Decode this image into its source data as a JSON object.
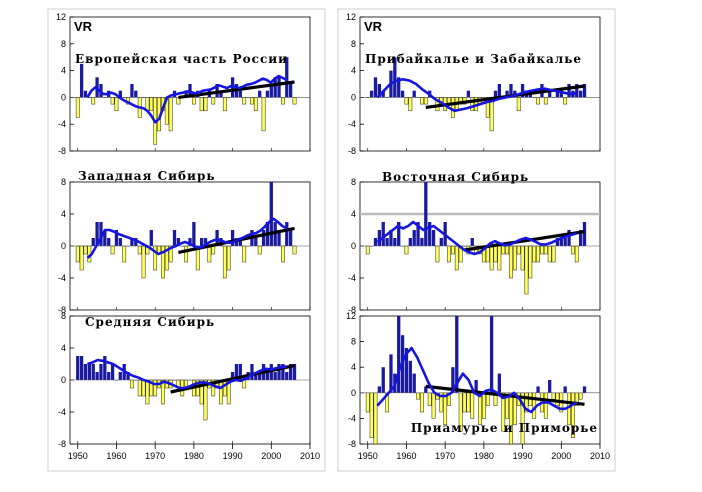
{
  "colors": {
    "positive_bar": "#1a1aa0",
    "negative_bar": "#ffff55",
    "negative_edge": "#222222",
    "moving_average": "#1515e0",
    "trend": "#000000",
    "reference_line": "#bbbbbb"
  },
  "chart_data": [
    {
      "type": "bar",
      "panel": "top-left",
      "corner_label": "VR",
      "title": "Европейская часть России",
      "ylim": [
        -8,
        12
      ],
      "yticks": [
        -8,
        -4,
        0,
        4,
        8,
        12
      ],
      "start_year": 1950,
      "end_year": 2006,
      "values": [
        -3,
        5,
        1,
        0,
        -1,
        3,
        2,
        0,
        1,
        -1,
        -2,
        1,
        0,
        -1,
        2,
        1,
        -3,
        0,
        -2,
        -2,
        -7,
        -5,
        -2,
        -4,
        -5,
        1,
        -1,
        0,
        1,
        2,
        -1,
        1,
        -2,
        -2,
        1,
        -1,
        2,
        1,
        -2,
        0,
        3,
        2,
        1,
        -1,
        0,
        -1,
        -2,
        1,
        -5,
        1,
        2,
        3,
        3,
        -1,
        6,
        2,
        -1
      ],
      "moving_average": [
        0,
        1,
        1.5,
        1,
        0.5,
        0.5,
        0.7,
        0.5,
        0,
        -0.4,
        -0.7,
        -1,
        -1.3,
        -1.5,
        -1.6,
        -2,
        -2.7,
        -3.7,
        -3.2,
        -1.5,
        0,
        0.3,
        0.4,
        0.6,
        0.7,
        0.9,
        0.8,
        0.6,
        0.7,
        1,
        1.1,
        1.2,
        1.5,
        1.8,
        1.6,
        1.4,
        1.7,
        1.6,
        1.4,
        1.6,
        1.9,
        2,
        2.2,
        2.5,
        2.8,
        2.6,
        2.2,
        2.8,
        3.2,
        2.9,
        2.6
      ],
      "trend": {
        "start_year": 1976,
        "end_year": 2006,
        "start": 0,
        "end": 2.3
      }
    },
    {
      "type": "bar",
      "panel": "middle-left",
      "title": "Западная Сибирь",
      "ylim": [
        -8,
        8
      ],
      "yticks": [
        -8,
        -4,
        0,
        4,
        8
      ],
      "start_year": 1950,
      "end_year": 2006,
      "values": [
        -2,
        -3,
        -1,
        -2,
        1,
        3,
        3,
        2,
        1,
        -1,
        2,
        1,
        -2,
        0,
        1,
        1,
        -1,
        -4,
        -1,
        2,
        -3,
        -1,
        -4,
        -3,
        -2,
        2,
        1,
        0,
        -2,
        1,
        3,
        -3,
        1,
        1,
        -2,
        -1,
        2,
        1,
        -4,
        -3,
        2,
        1,
        1,
        -2,
        0,
        2,
        1,
        -1,
        2,
        3,
        8,
        3,
        2,
        -2,
        3,
        2,
        -1
      ],
      "moving_average": [
        -1.5,
        -1,
        0,
        1,
        2,
        2,
        1.8,
        1.5,
        1.3,
        1.1,
        0.9,
        0.7,
        0.4,
        0.1,
        -0.2,
        -0.6,
        -1,
        -0.8,
        -0.5,
        -0.2,
        0,
        0.3,
        0.5,
        0.3,
        0,
        -0.2,
        -0.1,
        0.3,
        0.6,
        0.8,
        0.7,
        0.5,
        0.4,
        0.5,
        0.8,
        1,
        1.3,
        1.5,
        1.6,
        1.9,
        2.4,
        3,
        3.4,
        3,
        2.5,
        2.2
      ],
      "trend": {
        "start_year": 1976,
        "end_year": 2006,
        "start": -0.8,
        "end": 2.2
      }
    },
    {
      "type": "bar",
      "panel": "bottom-left",
      "title": "Средняя Сибирь",
      "ylim": [
        -8,
        8
      ],
      "yticks": [
        -8,
        -4,
        0,
        4,
        8
      ],
      "start_year": 1950,
      "end_year": 2006,
      "values": [
        3,
        3,
        2,
        2,
        2,
        1,
        2,
        3,
        1,
        2,
        0,
        1,
        2,
        1,
        -1,
        0,
        -2,
        -2,
        -3,
        -2,
        -2,
        -1,
        -3,
        -1,
        -1,
        0,
        -1,
        -2,
        -1,
        0,
        -2,
        -2,
        -3,
        -5,
        -1,
        -2,
        -1,
        -3,
        -2,
        -3,
        1,
        2,
        2,
        -1,
        1,
        2,
        1,
        1,
        2,
        1,
        2,
        1,
        2,
        2,
        1,
        2,
        2
      ],
      "moving_average": [
        2,
        2.2,
        2.5,
        2.4,
        2.2,
        2,
        1.6,
        1.2,
        0.8,
        0.5,
        0.3,
        0,
        -0.2,
        -0.5,
        -0.5,
        -0.2,
        -0.4,
        -0.7,
        -1,
        -1,
        -0.8,
        -0.5,
        -0.3,
        -0.3,
        -0.5,
        -0.8,
        -1,
        -0.6,
        -0.2,
        0,
        -0.1,
        0.2,
        0.6,
        0.9,
        1.2,
        1.4,
        1.3,
        1.5,
        1.6,
        1.7
      ],
      "trend": {
        "start_year": 1974,
        "end_year": 2006,
        "start": -1.5,
        "end": 1.8
      }
    },
    {
      "type": "bar",
      "panel": "top-right",
      "corner_label": "VR",
      "title": "Прибайкалье и Забайкалье",
      "ylim": [
        -8,
        12
      ],
      "yticks": [
        -8,
        -4,
        0,
        4,
        8,
        12
      ],
      "start_year": 1950,
      "end_year": 2006,
      "values": [
        0,
        1,
        3,
        2,
        1,
        0,
        4,
        6,
        3,
        1,
        -1,
        -2,
        1,
        0,
        -1,
        -1,
        1,
        0,
        -2,
        -1,
        -2,
        -1,
        -3,
        -2,
        -1,
        -1,
        1,
        -2,
        -2,
        -1,
        0,
        -3,
        -5,
        1,
        2,
        0,
        1,
        2,
        1,
        -2,
        2,
        1,
        1,
        0,
        -1,
        2,
        -1,
        1,
        0,
        1,
        1,
        -1,
        2,
        1,
        2,
        1,
        2
      ],
      "moving_average": [
        0,
        1,
        2,
        2.5,
        2.7,
        2.5,
        2,
        1.2,
        0.5,
        -0.3,
        -0.8,
        -1.5,
        -2,
        -1.8,
        -1.6,
        -1.3,
        -1,
        -0.7,
        -0.5,
        -0.2,
        0,
        0.2,
        0.5,
        0.8,
        1,
        1.2,
        1.3,
        1.1,
        0.9,
        0.7,
        0.5,
        0.6
      ],
      "trend": {
        "start_year": 1965,
        "end_year": 2006,
        "start": -1.5,
        "end": 1.7
      }
    },
    {
      "type": "bar",
      "panel": "middle-right",
      "title": "Восточная Сибирь",
      "ylim": [
        -8,
        8
      ],
      "yticks": [
        -8,
        -4,
        0,
        4,
        8
      ],
      "start_year": 1950,
      "end_year": 2006,
      "reference_line": 4,
      "values": [
        -1,
        0,
        1,
        2,
        3,
        1,
        2,
        1,
        3,
        0,
        -1,
        1,
        2,
        3,
        1,
        8,
        3,
        2,
        -2,
        1,
        3,
        -2,
        -1,
        -3,
        -2,
        0,
        -1,
        1,
        -1,
        -1,
        -2,
        -2,
        -3,
        -2,
        -3,
        -1,
        -1,
        -4,
        -3,
        -1,
        -3,
        -6,
        -4,
        -2,
        -2,
        -1,
        -1,
        -2,
        -2,
        1,
        1,
        1,
        2,
        -1,
        -2,
        2,
        3
      ],
      "moving_average": [
        0.5,
        1,
        1.5,
        2,
        2.5,
        2.2,
        2.5,
        3,
        2.5,
        2,
        2.3,
        2.5,
        2,
        1.5,
        1,
        0.5,
        0,
        -0.5,
        -0.8,
        -1,
        -0.8,
        -0.3,
        0.3,
        0.6,
        0.3,
        0.1,
        0.2,
        0.5,
        0.8,
        1,
        0.8,
        0.5,
        0.2,
        0.2,
        0.4,
        0.7,
        1,
        1.2,
        1.4,
        1.6
      ],
      "trend": {
        "start_year": 1975,
        "end_year": 2006,
        "start": -0.5,
        "end": 1.8
      }
    },
    {
      "type": "bar",
      "panel": "bottom-right",
      "title": "Приамурье и Приморье",
      "ylim": [
        -8,
        12
      ],
      "yticks": [
        -8,
        -4,
        0,
        4,
        8,
        12
      ],
      "start_year": 1950,
      "end_year": 2006,
      "values": [
        -3,
        -7,
        -9,
        1,
        4,
        -3,
        6,
        3,
        13,
        9,
        7,
        5,
        3,
        -1,
        -3,
        1,
        -2,
        -4,
        -1,
        -3,
        -5,
        -2,
        4,
        14,
        -6,
        -3,
        -3,
        -4,
        2,
        -5,
        -4,
        -2,
        12,
        -2,
        3,
        -6,
        -4,
        -10,
        -5,
        -2,
        -8,
        -3,
        -2,
        -4,
        1,
        -3,
        -4,
        2,
        -1,
        -2,
        -3,
        1,
        -5,
        -7,
        -2,
        -1,
        1
      ],
      "moving_average": [
        -2,
        -1,
        0,
        1,
        4,
        6,
        7,
        5.5,
        3.5,
        1.5,
        0,
        -0.5,
        -0.5,
        0,
        1.5,
        3,
        2,
        0,
        -0.5,
        0.3,
        0.5,
        0,
        -0.8,
        -0.6,
        0,
        -1,
        -2.5,
        -3,
        -2,
        -1.5,
        -1.5,
        -2,
        -2.5,
        -2.5,
        -2,
        -1.5
      ],
      "trend": {
        "start_year": 1965,
        "end_year": 2006,
        "start": 1,
        "end": -1.8
      }
    }
  ],
  "shared_x_axis": {
    "tick_labels": [
      "1950",
      "1960",
      "1970",
      "1980",
      "1990",
      "2000",
      "2010"
    ]
  }
}
